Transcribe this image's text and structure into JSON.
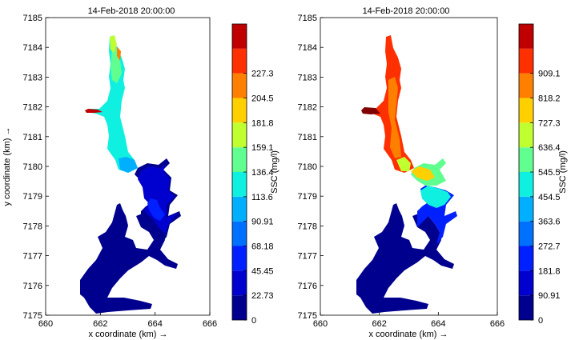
{
  "chart_data": [
    {
      "type": "heatmap",
      "title": "14-Feb-2018 20:00:00",
      "xlabel": "x coordinate (km) →",
      "ylabel": "y coordinate (km) →",
      "xlim": [
        660,
        666
      ],
      "ylim": [
        7175,
        7185
      ],
      "xticks": [
        "660",
        "662",
        "664",
        "666"
      ],
      "yticks": [
        "7175",
        "7176",
        "7177",
        "7178",
        "7179",
        "7180",
        "7181",
        "7182",
        "7183",
        "7184",
        "7185"
      ],
      "colorbar": {
        "label": "SSC (mg/l)",
        "ticks": [
          "0",
          "22.73",
          "45.45",
          "68.18",
          "90.91",
          "113.6",
          "136.4",
          "159.1",
          "181.8",
          "204.5",
          "227.3"
        ],
        "range": [
          0,
          250
        ]
      }
    },
    {
      "type": "heatmap",
      "title": "14-Feb-2018 20:00:00",
      "xlabel": "x coordinate (km) →",
      "ylabel": "",
      "xlim": [
        660,
        666
      ],
      "ylim": [
        7175,
        7185
      ],
      "xticks": [
        "660",
        "662",
        "664",
        "666"
      ],
      "yticks": [
        "7175",
        "7176",
        "7177",
        "7178",
        "7179",
        "7180",
        "7181",
        "7182",
        "7183",
        "7184",
        "7185"
      ],
      "colorbar": {
        "label": "SSC (mg/l)",
        "ticks": [
          "0",
          "90.91",
          "181.8",
          "272.7",
          "363.6",
          "454.5",
          "545.5",
          "636.4",
          "727.3",
          "818.2",
          "909.1"
        ],
        "range": [
          0,
          1000
        ]
      }
    }
  ],
  "colormap": [
    "#00008f",
    "#0000cf",
    "#0020ff",
    "#0070ff",
    "#00b0ff",
    "#10f0e0",
    "#60ff90",
    "#c0ff30",
    "#ffd000",
    "#ff8000",
    "#ff3000",
    "#c00000",
    "#800000"
  ]
}
